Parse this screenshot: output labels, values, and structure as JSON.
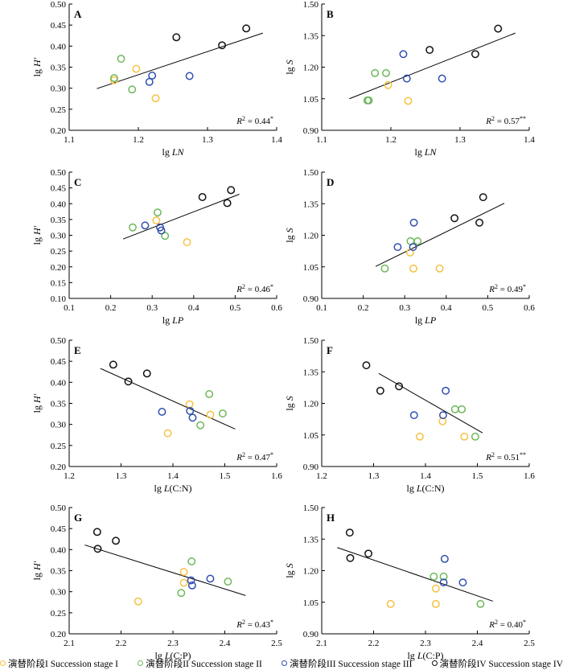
{
  "chart_data": [
    {
      "panel": "A",
      "type": "scatter",
      "xlabel": "lg LN",
      "x_base": "lg",
      "x_var": "LN",
      "ylabel": "lg H′",
      "y_base": "lg",
      "y_var": "H′",
      "xlim": [
        1.1,
        1.4
      ],
      "xticks": [
        1.1,
        1.2,
        1.3,
        1.4
      ],
      "xtick_labels": [
        "1.1",
        "1.2",
        "1.3",
        "1.4"
      ],
      "ylim": [
        0.2,
        0.5
      ],
      "yticks": [
        0.2,
        0.25,
        0.3,
        0.35,
        0.4,
        0.45,
        0.5
      ],
      "ytick_labels": [
        "0.20",
        "0.25",
        "0.30",
        "0.35",
        "0.40",
        "0.45",
        "0.50"
      ],
      "r2_text": "= 0.44",
      "r2_sig": "*",
      "fit_line": [
        [
          1.14,
          0.299
        ],
        [
          1.38,
          0.431
        ]
      ],
      "points": [
        {
          "stage": 1,
          "x": 1.165,
          "y": 0.319
        },
        {
          "stage": 1,
          "x": 1.197,
          "y": 0.346
        },
        {
          "stage": 1,
          "x": 1.225,
          "y": 0.276
        },
        {
          "stage": 2,
          "x": 1.165,
          "y": 0.324
        },
        {
          "stage": 2,
          "x": 1.175,
          "y": 0.37
        },
        {
          "stage": 2,
          "x": 1.191,
          "y": 0.297
        },
        {
          "stage": 3,
          "x": 1.216,
          "y": 0.315
        },
        {
          "stage": 3,
          "x": 1.22,
          "y": 0.33
        },
        {
          "stage": 3,
          "x": 1.274,
          "y": 0.329
        },
        {
          "stage": 4,
          "x": 1.255,
          "y": 0.421
        },
        {
          "stage": 4,
          "x": 1.321,
          "y": 0.402
        },
        {
          "stage": 4,
          "x": 1.356,
          "y": 0.442
        }
      ]
    },
    {
      "panel": "B",
      "type": "scatter",
      "xlabel": "lg LN",
      "x_base": "lg",
      "x_var": "LN",
      "ylabel": "lg S",
      "y_base": "lg",
      "y_var": "S",
      "xlim": [
        1.1,
        1.4
      ],
      "xticks": [
        1.1,
        1.2,
        1.3,
        1.4
      ],
      "xtick_labels": [
        "1.1",
        "1.2",
        "1.3",
        "1.4"
      ],
      "ylim": [
        0.9,
        1.5
      ],
      "yticks": [
        0.9,
        1.05,
        1.2,
        1.35,
        1.5
      ],
      "ytick_labels": [
        "0.90",
        "1.05",
        "1.20",
        "1.35",
        "1.50"
      ],
      "r2_text": "= 0.57",
      "r2_sig": "**",
      "fit_line": [
        [
          1.14,
          1.05
        ],
        [
          1.38,
          1.362
        ]
      ],
      "points": [
        {
          "stage": 1,
          "x": 1.196,
          "y": 1.115
        },
        {
          "stage": 1,
          "x": 1.225,
          "y": 1.04
        },
        {
          "stage": 2,
          "x": 1.166,
          "y": 1.042
        },
        {
          "stage": 2,
          "x": 1.168,
          "y": 1.042
        },
        {
          "stage": 2,
          "x": 1.177,
          "y": 1.172
        },
        {
          "stage": 2,
          "x": 1.193,
          "y": 1.172
        },
        {
          "stage": 3,
          "x": 1.218,
          "y": 1.262
        },
        {
          "stage": 3,
          "x": 1.223,
          "y": 1.146
        },
        {
          "stage": 3,
          "x": 1.274,
          "y": 1.146
        },
        {
          "stage": 4,
          "x": 1.256,
          "y": 1.282
        },
        {
          "stage": 4,
          "x": 1.322,
          "y": 1.262
        },
        {
          "stage": 4,
          "x": 1.355,
          "y": 1.383
        }
      ]
    },
    {
      "panel": "C",
      "type": "scatter",
      "xlabel": "lg LP",
      "x_base": "lg",
      "x_var": "LP",
      "ylabel": "lg H′",
      "y_base": "lg",
      "y_var": "H′",
      "xlim": [
        0.1,
        0.6
      ],
      "xticks": [
        0.1,
        0.2,
        0.3,
        0.4,
        0.5,
        0.6
      ],
      "xtick_labels": [
        "0.1",
        "0.2",
        "0.3",
        "0.4",
        "0.5",
        "0.6"
      ],
      "ylim": [
        0.1,
        0.5
      ],
      "yticks": [
        0.1,
        0.15,
        0.2,
        0.25,
        0.3,
        0.35,
        0.4,
        0.45,
        0.5
      ],
      "ytick_labels": [
        "0.10",
        "0.15",
        "0.20",
        "0.25",
        "0.30",
        "0.35",
        "0.40",
        "0.45",
        "0.50"
      ],
      "r2_text": "= 0.46",
      "r2_sig": "*",
      "fit_line": [
        [
          0.23,
          0.288
        ],
        [
          0.51,
          0.43
        ]
      ],
      "points": [
        {
          "stage": 1,
          "x": 0.31,
          "y": 0.347
        },
        {
          "stage": 1,
          "x": 0.384,
          "y": 0.278
        },
        {
          "stage": 2,
          "x": 0.253,
          "y": 0.325
        },
        {
          "stage": 2,
          "x": 0.313,
          "y": 0.372
        },
        {
          "stage": 2,
          "x": 0.331,
          "y": 0.298
        },
        {
          "stage": 3,
          "x": 0.283,
          "y": 0.331
        },
        {
          "stage": 3,
          "x": 0.319,
          "y": 0.325
        },
        {
          "stage": 3,
          "x": 0.322,
          "y": 0.315
        },
        {
          "stage": 4,
          "x": 0.421,
          "y": 0.421
        },
        {
          "stage": 4,
          "x": 0.481,
          "y": 0.402
        },
        {
          "stage": 4,
          "x": 0.49,
          "y": 0.443
        }
      ]
    },
    {
      "panel": "D",
      "type": "scatter",
      "xlabel": "lg LP",
      "x_base": "lg",
      "x_var": "LP",
      "ylabel": "lg S",
      "y_base": "lg",
      "y_var": "S",
      "xlim": [
        0.1,
        0.6
      ],
      "xticks": [
        0.1,
        0.2,
        0.3,
        0.4,
        0.5,
        0.6
      ],
      "xtick_labels": [
        "0.1",
        "0.2",
        "0.3",
        "0.4",
        "0.5",
        "0.6"
      ],
      "ylim": [
        0.9,
        1.5
      ],
      "yticks": [
        0.9,
        1.05,
        1.2,
        1.35,
        1.5
      ],
      "ytick_labels": [
        "0.90",
        "1.05",
        "1.20",
        "1.35",
        "1.50"
      ],
      "r2_text": "= 0.49",
      "r2_sig": "*",
      "fit_line": [
        [
          0.23,
          1.052
        ],
        [
          0.54,
          1.352
        ]
      ],
      "points": [
        {
          "stage": 1,
          "x": 0.313,
          "y": 1.118
        },
        {
          "stage": 1,
          "x": 0.321,
          "y": 1.042
        },
        {
          "stage": 1,
          "x": 0.384,
          "y": 1.042
        },
        {
          "stage": 2,
          "x": 0.252,
          "y": 1.042
        },
        {
          "stage": 2,
          "x": 0.314,
          "y": 1.172
        },
        {
          "stage": 2,
          "x": 0.331,
          "y": 1.172
        },
        {
          "stage": 3,
          "x": 0.283,
          "y": 1.144
        },
        {
          "stage": 3,
          "x": 0.32,
          "y": 1.144
        },
        {
          "stage": 3,
          "x": 0.322,
          "y": 1.26
        },
        {
          "stage": 4,
          "x": 0.42,
          "y": 1.281
        },
        {
          "stage": 4,
          "x": 0.48,
          "y": 1.26
        },
        {
          "stage": 4,
          "x": 0.489,
          "y": 1.381
        }
      ]
    },
    {
      "panel": "E",
      "type": "scatter",
      "xlabel": "lg L(C:N)",
      "x_base": "lg",
      "x_var": "L",
      "ylabel": "lg H′",
      "y_base": "lg",
      "y_var": "H′",
      "xlim": [
        1.2,
        1.6
      ],
      "xticks": [
        1.2,
        1.3,
        1.4,
        1.5,
        1.6
      ],
      "xtick_labels": [
        "1.2",
        "1.3",
        "1.4",
        "1.5",
        "1.6"
      ],
      "ylim": [
        0.2,
        0.5
      ],
      "yticks": [
        0.2,
        0.25,
        0.3,
        0.35,
        0.4,
        0.45,
        0.5
      ],
      "ytick_labels": [
        "0.20",
        "0.25",
        "0.30",
        "0.35",
        "0.40",
        "0.45",
        "0.50"
      ],
      "r2_text": "= 0.47",
      "r2_sig": "*",
      "fit_line": [
        [
          1.26,
          0.433
        ],
        [
          1.52,
          0.289
        ]
      ],
      "points": [
        {
          "stage": 1,
          "x": 1.39,
          "y": 0.279
        },
        {
          "stage": 1,
          "x": 1.432,
          "y": 0.348
        },
        {
          "stage": 1,
          "x": 1.472,
          "y": 0.323
        },
        {
          "stage": 2,
          "x": 1.453,
          "y": 0.298
        },
        {
          "stage": 2,
          "x": 1.47,
          "y": 0.372
        },
        {
          "stage": 2,
          "x": 1.496,
          "y": 0.326
        },
        {
          "stage": 3,
          "x": 1.379,
          "y": 0.33
        },
        {
          "stage": 3,
          "x": 1.433,
          "y": 0.332
        },
        {
          "stage": 3,
          "x": 1.438,
          "y": 0.316
        },
        {
          "stage": 4,
          "x": 1.285,
          "y": 0.442
        },
        {
          "stage": 4,
          "x": 1.314,
          "y": 0.402
        },
        {
          "stage": 4,
          "x": 1.35,
          "y": 0.421
        }
      ]
    },
    {
      "panel": "F",
      "type": "scatter",
      "xlabel": "lg L(C:N)",
      "x_base": "lg",
      "x_var": "L",
      "ylabel": "lg S",
      "y_base": "lg",
      "y_var": "S",
      "xlim": [
        1.2,
        1.6
      ],
      "xticks": [
        1.2,
        1.3,
        1.4,
        1.5,
        1.6
      ],
      "xtick_labels": [
        "1.2",
        "1.3",
        "1.4",
        "1.5",
        "1.6"
      ],
      "ylim": [
        0.9,
        1.5
      ],
      "yticks": [
        0.9,
        1.05,
        1.2,
        1.35,
        1.5
      ],
      "ytick_labels": [
        "0.90",
        "1.05",
        "1.20",
        "1.35",
        "1.50"
      ],
      "r2_text": "= 0.51",
      "r2_sig": "**",
      "fit_line": [
        [
          1.31,
          1.342
        ],
        [
          1.51,
          1.06
        ]
      ],
      "points": [
        {
          "stage": 1,
          "x": 1.389,
          "y": 1.042
        },
        {
          "stage": 1,
          "x": 1.433,
          "y": 1.115
        },
        {
          "stage": 1,
          "x": 1.475,
          "y": 1.042
        },
        {
          "stage": 2,
          "x": 1.457,
          "y": 1.172
        },
        {
          "stage": 2,
          "x": 1.47,
          "y": 1.172
        },
        {
          "stage": 2,
          "x": 1.496,
          "y": 1.042
        },
        {
          "stage": 3,
          "x": 1.378,
          "y": 1.144
        },
        {
          "stage": 3,
          "x": 1.434,
          "y": 1.144
        },
        {
          "stage": 3,
          "x": 1.439,
          "y": 1.26
        },
        {
          "stage": 4,
          "x": 1.286,
          "y": 1.381
        },
        {
          "stage": 4,
          "x": 1.313,
          "y": 1.26
        },
        {
          "stage": 4,
          "x": 1.349,
          "y": 1.281
        }
      ]
    },
    {
      "panel": "G",
      "type": "scatter",
      "xlabel": "lg L(C:P)",
      "x_base": "lg",
      "x_var": "L",
      "ylabel": "lg H′",
      "y_base": "lg",
      "y_var": "H′",
      "xlim": [
        2.1,
        2.5
      ],
      "xticks": [
        2.1,
        2.2,
        2.3,
        2.4,
        2.5
      ],
      "xtick_labels": [
        "2.1",
        "2.2",
        "2.3",
        "2.4",
        "2.5"
      ],
      "ylim": [
        0.2,
        0.5
      ],
      "yticks": [
        0.2,
        0.25,
        0.3,
        0.35,
        0.4,
        0.45,
        0.5
      ],
      "ytick_labels": [
        "0.20",
        "0.25",
        "0.30",
        "0.35",
        "0.40",
        "0.45",
        "0.50"
      ],
      "r2_text": "= 0.43",
      "r2_sig": "*",
      "fit_line": [
        [
          2.13,
          0.411
        ],
        [
          2.44,
          0.291
        ]
      ],
      "points": [
        {
          "stage": 1,
          "x": 2.233,
          "y": 0.277
        },
        {
          "stage": 1,
          "x": 2.321,
          "y": 0.347
        },
        {
          "stage": 1,
          "x": 2.321,
          "y": 0.321
        },
        {
          "stage": 2,
          "x": 2.316,
          "y": 0.297
        },
        {
          "stage": 2,
          "x": 2.336,
          "y": 0.372
        },
        {
          "stage": 2,
          "x": 2.406,
          "y": 0.324
        },
        {
          "stage": 3,
          "x": 2.335,
          "y": 0.327
        },
        {
          "stage": 3,
          "x": 2.337,
          "y": 0.315
        },
        {
          "stage": 3,
          "x": 2.372,
          "y": 0.331
        },
        {
          "stage": 4,
          "x": 2.154,
          "y": 0.442
        },
        {
          "stage": 4,
          "x": 2.155,
          "y": 0.402
        },
        {
          "stage": 4,
          "x": 2.19,
          "y": 0.421
        }
      ]
    },
    {
      "panel": "H",
      "type": "scatter",
      "xlabel": "lg L(C:P)",
      "x_base": "lg",
      "x_var": "L",
      "ylabel": "lg S",
      "y_base": "lg",
      "y_var": "S",
      "xlim": [
        2.1,
        2.5
      ],
      "xticks": [
        2.1,
        2.2,
        2.3,
        2.4,
        2.5
      ],
      "xtick_labels": [
        "2.1",
        "2.2",
        "2.3",
        "2.4",
        "2.5"
      ],
      "ylim": [
        0.9,
        1.5
      ],
      "yticks": [
        0.9,
        1.05,
        1.2,
        1.35,
        1.5
      ],
      "ytick_labels": [
        "0.90",
        "1.05",
        "1.20",
        "1.35",
        "1.50"
      ],
      "r2_text": "= 0.40",
      "r2_sig": "*",
      "fit_line": [
        [
          2.13,
          1.31
        ],
        [
          2.43,
          1.055
        ]
      ],
      "points": [
        {
          "stage": 1,
          "x": 2.233,
          "y": 1.042
        },
        {
          "stage": 1,
          "x": 2.32,
          "y": 1.115
        },
        {
          "stage": 1,
          "x": 2.32,
          "y": 1.042
        },
        {
          "stage": 2,
          "x": 2.316,
          "y": 1.172
        },
        {
          "stage": 2,
          "x": 2.335,
          "y": 1.172
        },
        {
          "stage": 2,
          "x": 2.406,
          "y": 1.042
        },
        {
          "stage": 3,
          "x": 2.335,
          "y": 1.144
        },
        {
          "stage": 3,
          "x": 2.337,
          "y": 1.256
        },
        {
          "stage": 3,
          "x": 2.372,
          "y": 1.144
        },
        {
          "stage": 4,
          "x": 2.154,
          "y": 1.381
        },
        {
          "stage": 4,
          "x": 2.155,
          "y": 1.26
        },
        {
          "stage": 4,
          "x": 2.19,
          "y": 1.281
        }
      ]
    }
  ],
  "legend": [
    {
      "stage": 1,
      "label": "演替阶段I Succession stage I",
      "color": "#f5c242"
    },
    {
      "stage": 2,
      "label": "演替阶段II Succession stage II",
      "color": "#6db85a"
    },
    {
      "stage": 3,
      "label": "演替阶段III Succession stage III",
      "color": "#2f4fb0"
    },
    {
      "stage": 4,
      "label": "演替阶段IV Succession stage IV",
      "color": "#111111"
    }
  ],
  "r2_symbol": "R",
  "r2_exponent": "2"
}
